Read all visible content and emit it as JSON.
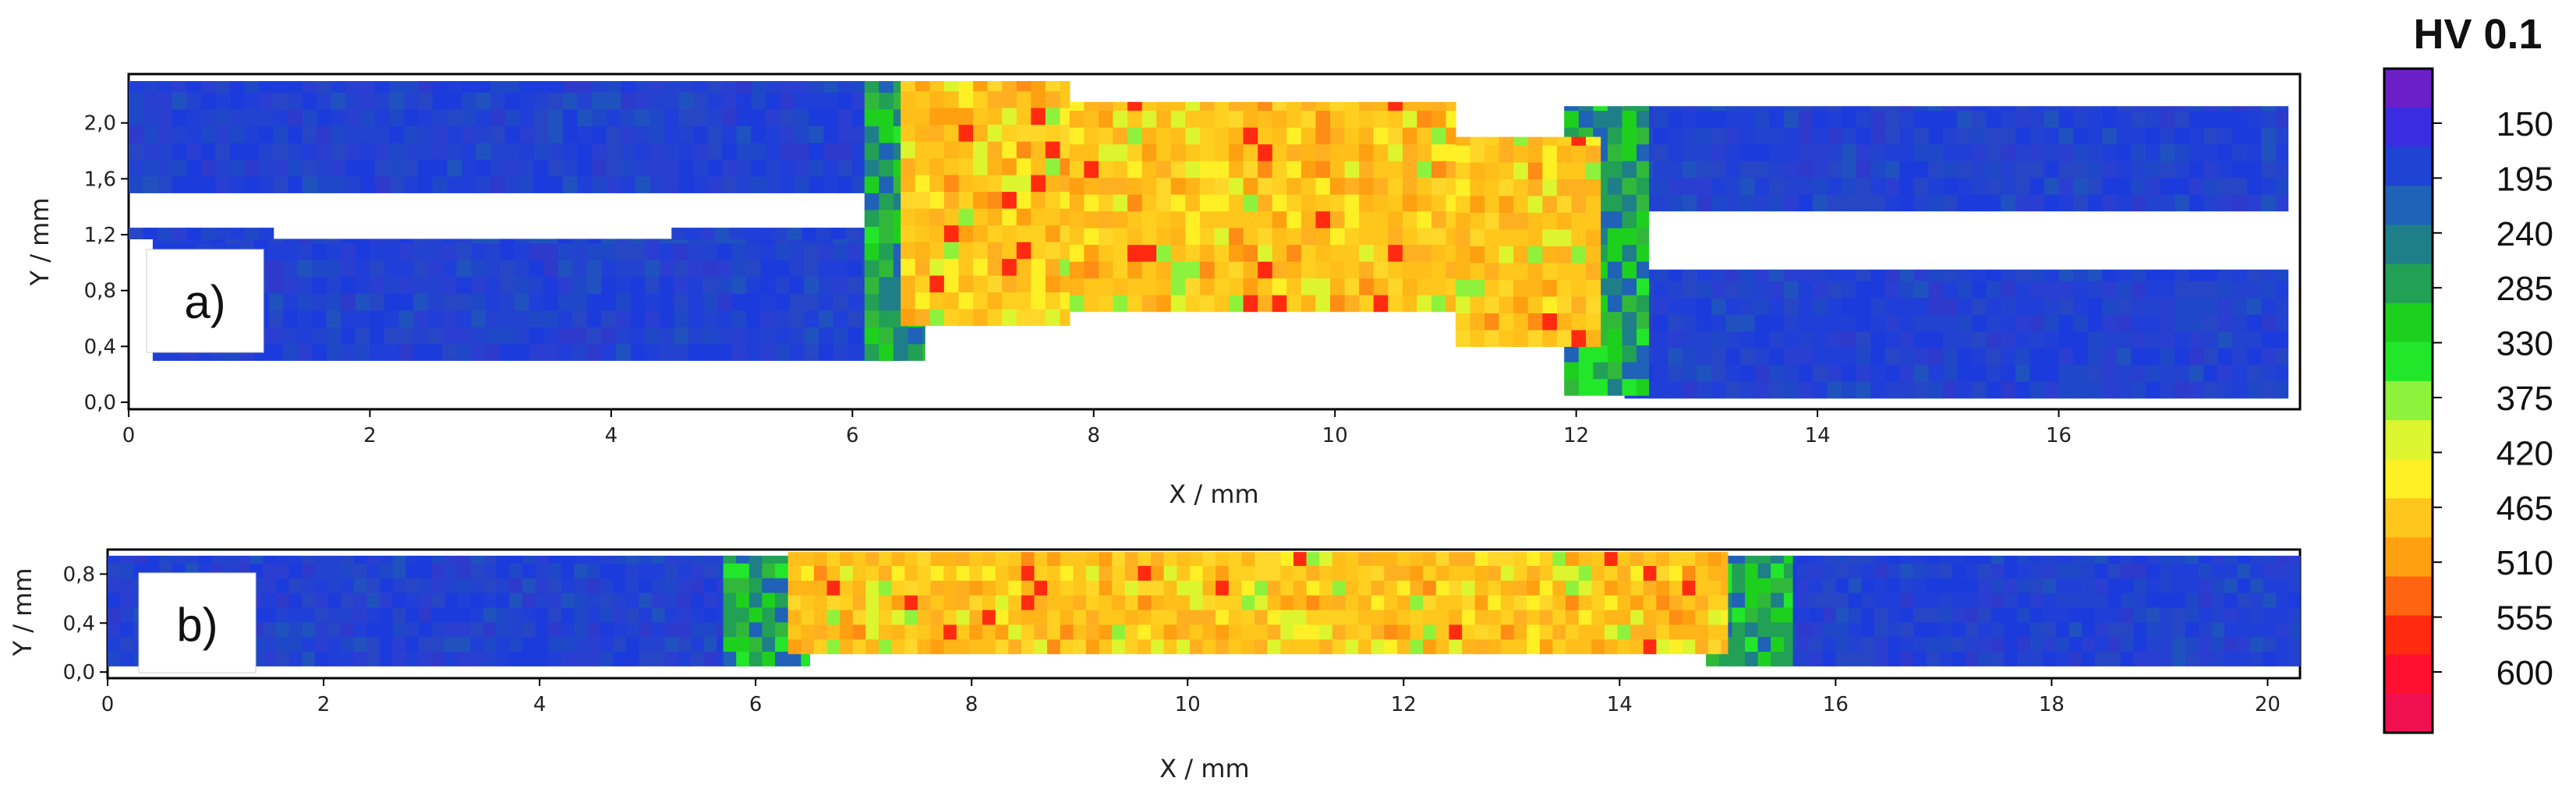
{
  "chart_data": [
    {
      "type": "heatmap",
      "panel_label": "a)",
      "xlabel": "X / mm",
      "ylabel": "Y / mm",
      "xlim": [
        0,
        18
      ],
      "ylim": [
        -0.05,
        2.35
      ],
      "x_ticks": [
        0,
        2,
        4,
        6,
        8,
        10,
        12,
        14,
        16
      ],
      "x_tick_labels": [
        "0",
        "2",
        "4",
        "6",
        "8",
        "10",
        "12",
        "14",
        "16"
      ],
      "y_ticks": [
        0.0,
        0.4,
        0.8,
        1.2,
        1.6,
        2.0
      ],
      "y_tick_labels": [
        "0,0",
        "0,4",
        "0,8",
        "1,2",
        "1,6",
        "2,0"
      ],
      "grid": false,
      "regions": [
        {
          "material": "base",
          "x": [
            0,
            6.3
          ],
          "y": [
            1.5,
            2.3
          ]
        },
        {
          "material": "base",
          "x": [
            0.2,
            6.4
          ],
          "y": [
            0.3,
            1.17
          ]
        },
        {
          "material": "base",
          "x": [
            0,
            1.2
          ],
          "y": [
            1.17,
            1.25
          ]
        },
        {
          "material": "base",
          "x": [
            4.5,
            6.3
          ],
          "y": [
            1.17,
            1.25
          ]
        },
        {
          "material": "base",
          "x": [
            12.4,
            17.9
          ],
          "y": [
            1.37,
            2.12
          ]
        },
        {
          "material": "base",
          "x": [
            12.4,
            17.9
          ],
          "y": [
            0.03,
            0.95
          ]
        },
        {
          "material": "transition",
          "x": [
            6.1,
            6.6
          ],
          "y": [
            0.3,
            2.3
          ]
        },
        {
          "material": "transition",
          "x": [
            11.9,
            12.6
          ],
          "y": [
            0.05,
            2.12
          ]
        },
        {
          "material": "weld",
          "x": [
            6.4,
            7.8
          ],
          "y": [
            0.55,
            2.3
          ]
        },
        {
          "material": "weld",
          "x": [
            7.8,
            11.0
          ],
          "y": [
            0.65,
            2.15
          ]
        },
        {
          "material": "weld",
          "x": [
            11.0,
            12.2
          ],
          "y": [
            0.4,
            1.9
          ]
        }
      ]
    },
    {
      "type": "heatmap",
      "panel_label": "b)",
      "xlabel": "X / mm",
      "ylabel": "Y / mm",
      "xlim": [
        0,
        20.3
      ],
      "ylim": [
        -0.05,
        1.0
      ],
      "x_ticks": [
        0,
        2,
        4,
        6,
        8,
        10,
        12,
        14,
        16,
        18,
        20
      ],
      "x_tick_labels": [
        "0",
        "2",
        "4",
        "6",
        "8",
        "10",
        "12",
        "14",
        "16",
        "18",
        "20"
      ],
      "y_ticks": [
        0.0,
        0.4,
        0.8
      ],
      "y_tick_labels": [
        "0,0",
        "0,4",
        "0,8"
      ],
      "grid": false,
      "regions": [
        {
          "material": "base",
          "x": [
            0,
            5.9
          ],
          "y": [
            0.05,
            0.95
          ]
        },
        {
          "material": "base",
          "x": [
            15.4,
            20.3
          ],
          "y": [
            0.05,
            0.95
          ]
        },
        {
          "material": "transition",
          "x": [
            5.7,
            6.5
          ],
          "y": [
            0.05,
            0.95
          ]
        },
        {
          "material": "transition",
          "x": [
            14.8,
            15.6
          ],
          "y": [
            0.05,
            0.95
          ]
        },
        {
          "material": "weld",
          "x": [
            6.3,
            15.0
          ],
          "y": [
            0.15,
            0.98
          ]
        }
      ]
    }
  ],
  "colorbar": {
    "title": "HV 0.1",
    "ticks": [
      "150",
      "195",
      "240",
      "285",
      "330",
      "375",
      "420",
      "465",
      "510",
      "555",
      "600"
    ],
    "colors": [
      "#6a1fc8",
      "#3a2ce0",
      "#1f43d2",
      "#1f62b8",
      "#1f7f88",
      "#22a055",
      "#1ed01e",
      "#22e62a",
      "#8ef23c",
      "#dcf52e",
      "#fff026",
      "#ffc61c",
      "#ffa010",
      "#ff6410",
      "#ff2a10",
      "#ff1030",
      "#f01050"
    ]
  }
}
